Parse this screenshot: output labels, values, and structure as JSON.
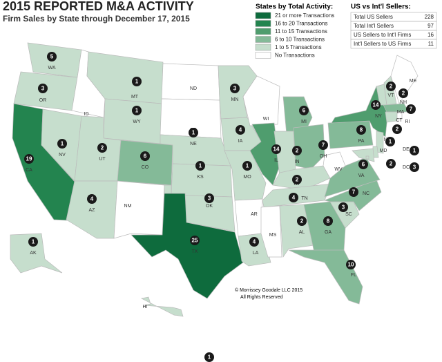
{
  "title": "2015 REPORTED M&A ACTIVITY",
  "subtitle": "Firm Sales by State through December 17, 2015",
  "legend": {
    "title": "States by Total Activity:",
    "items": [
      {
        "label": "21 or more Transactions",
        "color": "#0e6b3d"
      },
      {
        "label": "16 to 20 Transactions",
        "color": "#23844f"
      },
      {
        "label": "11 to 15 Transactions",
        "color": "#4f9d6e"
      },
      {
        "label": "6 to 10 Transactions",
        "color": "#84ba98"
      },
      {
        "label": "1 to 5 Transactions",
        "color": "#c6decd"
      },
      {
        "label": "No Transactions",
        "color": "#ffffff"
      }
    ]
  },
  "table": {
    "title": "US vs Int'l Sellers:",
    "rows": [
      [
        "Total US Sellers",
        228
      ],
      [
        "Total Int'l Sellers",
        97
      ],
      [
        "US Sellers to Int'l Firms",
        16
      ],
      [
        "Int'l Sellers to US Firms",
        11
      ]
    ]
  },
  "states": [
    {
      "abbr": "WA",
      "count": 5,
      "color": "#c6decd"
    },
    {
      "abbr": "OR",
      "count": 3,
      "color": "#c6decd"
    },
    {
      "abbr": "CA",
      "count": 19,
      "color": "#23844f"
    },
    {
      "abbr": "NV",
      "count": 1,
      "color": "#c6decd"
    },
    {
      "abbr": "ID",
      "count": null,
      "color": "#ffffff"
    },
    {
      "abbr": "MT",
      "count": 1,
      "color": "#c6decd"
    },
    {
      "abbr": "WY",
      "count": 1,
      "color": "#c6decd"
    },
    {
      "abbr": "UT",
      "count": 2,
      "color": "#c6decd"
    },
    {
      "abbr": "CO",
      "count": 6,
      "color": "#84ba98"
    },
    {
      "abbr": "AZ",
      "count": 4,
      "color": "#c6decd"
    },
    {
      "abbr": "NM",
      "count": null,
      "color": "#ffffff"
    },
    {
      "abbr": "ND",
      "count": null,
      "color": "#ffffff"
    },
    {
      "abbr": "SD",
      "count": null,
      "color": "#ffffff"
    },
    {
      "abbr": "NE",
      "count": 1,
      "color": "#c6decd"
    },
    {
      "abbr": "KS",
      "count": 1,
      "color": "#c6decd"
    },
    {
      "abbr": "OK",
      "count": 3,
      "color": "#c6decd"
    },
    {
      "abbr": "TX",
      "count": 25,
      "color": "#0e6b3d"
    },
    {
      "abbr": "MN",
      "count": 3,
      "color": "#c6decd"
    },
    {
      "abbr": "IA",
      "count": 4,
      "color": "#c6decd"
    },
    {
      "abbr": "MO",
      "count": 1,
      "color": "#c6decd"
    },
    {
      "abbr": "AR",
      "count": null,
      "color": "#ffffff"
    },
    {
      "abbr": "LA",
      "count": 4,
      "color": "#c6decd"
    },
    {
      "abbr": "WI",
      "count": null,
      "color": "#ffffff"
    },
    {
      "abbr": "IL",
      "count": 14,
      "color": "#4f9d6e"
    },
    {
      "abbr": "MI",
      "count": 6,
      "color": "#84ba98"
    },
    {
      "abbr": "IN",
      "count": 2,
      "color": "#c6decd"
    },
    {
      "abbr": "OH",
      "count": 7,
      "color": "#84ba98"
    },
    {
      "abbr": "KY",
      "count": 2,
      "color": "#c6decd"
    },
    {
      "abbr": "TN",
      "count": 4,
      "color": "#c6decd"
    },
    {
      "abbr": "MS",
      "count": null,
      "color": "#ffffff"
    },
    {
      "abbr": "AL",
      "count": 2,
      "color": "#c6decd"
    },
    {
      "abbr": "GA",
      "count": 8,
      "color": "#84ba98"
    },
    {
      "abbr": "FL",
      "count": 10,
      "color": "#84ba98"
    },
    {
      "abbr": "SC",
      "count": 3,
      "color": "#c6decd"
    },
    {
      "abbr": "NC",
      "count": 7,
      "color": "#84ba98"
    },
    {
      "abbr": "VA",
      "count": 6,
      "color": "#84ba98"
    },
    {
      "abbr": "WV",
      "count": null,
      "color": "#ffffff"
    },
    {
      "abbr": "PA",
      "count": 8,
      "color": "#84ba98"
    },
    {
      "abbr": "NY",
      "count": 14,
      "color": "#4f9d6e"
    },
    {
      "abbr": "VT",
      "count": 2,
      "color": "#c6decd"
    },
    {
      "abbr": "NH",
      "count": 2,
      "color": "#c6decd"
    },
    {
      "abbr": "ME",
      "count": null,
      "color": "#ffffff"
    },
    {
      "abbr": "MA",
      "count": 7,
      "color": "#84ba98"
    },
    {
      "abbr": "CT",
      "count": 2,
      "color": "#c6decd"
    },
    {
      "abbr": "RI",
      "count": null,
      "color": "#ffffff"
    },
    {
      "abbr": "NJ",
      "count": 1,
      "color": "#c6decd"
    },
    {
      "abbr": "DE",
      "count": 1,
      "color": "#c6decd"
    },
    {
      "abbr": "MD",
      "count": 2,
      "color": "#c6decd"
    },
    {
      "abbr": "DC",
      "count": 3,
      "color": "#c6decd"
    },
    {
      "abbr": "AK",
      "count": 1,
      "color": "#c6decd"
    },
    {
      "abbr": "HI",
      "count": 1,
      "color": "#c6decd"
    }
  ],
  "copyright": [
    "© Morrissey Goodale LLC 2015",
    "All Rights Reserved"
  ]
}
